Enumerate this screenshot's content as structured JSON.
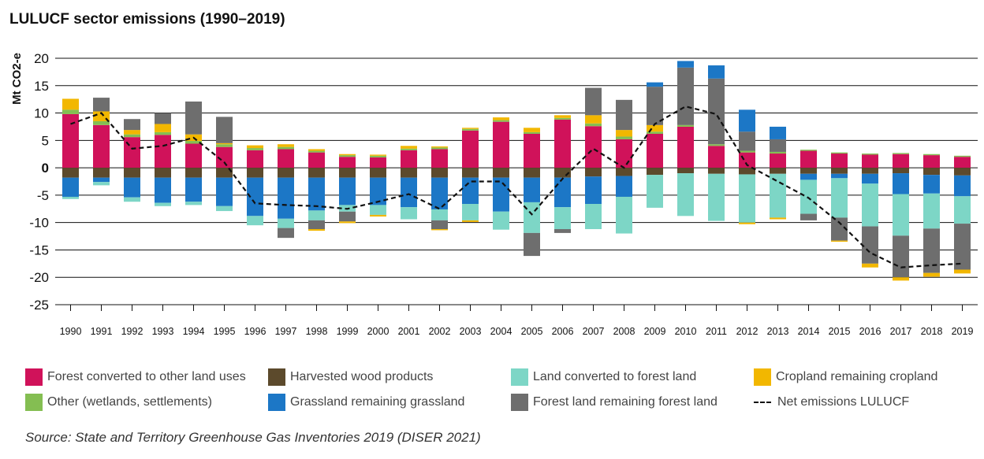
{
  "title": "LULUCF sector emissions (1990–2019)",
  "source": "Source: State and Territory Greenhouse Gas Inventories 2019 (DISER 2021)",
  "colors": {
    "forest_converted": "#D0125A",
    "harvested_wood": "#5C4A2C",
    "land_to_forest": "#7DD6C6",
    "cropland": "#F2B700",
    "other": "#84BE52",
    "grassland": "#1C77C6",
    "forest_remaining": "#6E6E6E",
    "net": "#111111"
  },
  "legend": [
    {
      "key": "forest_converted",
      "label": "Forest converted to other land uses"
    },
    {
      "key": "harvested_wood",
      "label": "Harvested wood products"
    },
    {
      "key": "land_to_forest",
      "label": "Land converted to forest land"
    },
    {
      "key": "cropland",
      "label": "Cropland remaining cropland"
    },
    {
      "key": "other",
      "label": "Other (wetlands, settlements)"
    },
    {
      "key": "grassland",
      "label": "Grassland remaining grassland"
    },
    {
      "key": "forest_remaining",
      "label": "Forest land remaining forest land"
    },
    {
      "key": "net",
      "label": "Net emissions LULUCF"
    }
  ],
  "chart_data": {
    "type": "bar",
    "stacked": true,
    "ylabel": "Mt CO2-e",
    "ylim": [
      -25,
      20
    ],
    "yticks": [
      "20",
      "15",
      "10",
      "5",
      "0",
      "-5",
      "-10",
      "-15",
      "-20",
      "-25"
    ],
    "ytick_values": [
      20,
      15,
      10,
      5,
      0,
      -5,
      -10,
      -15,
      -20,
      -25
    ],
    "grid": true,
    "legend_position": "bottom",
    "categories": [
      "1990",
      "1991",
      "1992",
      "1993",
      "1994",
      "1995",
      "1996",
      "1997",
      "1998",
      "1999",
      "2000",
      "2001",
      "2002",
      "2003",
      "2004",
      "2005",
      "2006",
      "2007",
      "2008",
      "2009",
      "2010",
      "2011",
      "2012",
      "2013",
      "2014",
      "2015",
      "2016",
      "2017",
      "2018",
      "2019"
    ],
    "series": [
      {
        "name": "Forest converted to other land uses",
        "key": "forest_converted",
        "values": [
          9.8,
          7.8,
          5.6,
          6.0,
          4.4,
          3.8,
          3.2,
          3.4,
          2.8,
          2.0,
          1.9,
          3.2,
          3.4,
          6.8,
          8.4,
          6.2,
          8.8,
          7.6,
          5.2,
          6.2,
          7.5,
          4.0,
          2.8,
          2.6,
          3.1,
          2.6,
          2.4,
          2.5,
          2.3,
          2.0
        ]
      },
      {
        "name": "Other (wetlands, settlements)",
        "key": "other",
        "values": [
          0.8,
          0.7,
          0.5,
          0.5,
          0.5,
          0.5,
          0.4,
          0.4,
          0.3,
          0.3,
          0.3,
          0.3,
          0.3,
          0.3,
          0.3,
          0.3,
          0.3,
          0.5,
          0.5,
          0.4,
          0.3,
          0.3,
          0.3,
          0.3,
          0.2,
          0.2,
          0.2,
          0.2,
          0.2,
          0.2
        ]
      },
      {
        "name": "Cropland remaining cropland",
        "key": "cropland",
        "values": [
          2.0,
          1.8,
          0.8,
          1.5,
          1.2,
          0.2,
          0.5,
          0.5,
          0.3,
          0.2,
          0.2,
          0.5,
          0.2,
          0.2,
          0.5,
          0.8,
          0.5,
          1.5,
          1.2,
          1.2,
          0.0,
          0.0,
          0.0,
          0.0,
          0.0,
          0.0,
          0.0,
          0.0,
          0.0,
          0.0
        ]
      },
      {
        "name": "Forest land remaining forest land",
        "key": "forest_remaining",
        "values": [
          0.0,
          2.5,
          2.0,
          2.0,
          6.0,
          4.8,
          0.0,
          0.0,
          0.0,
          0.0,
          0.0,
          0.0,
          0.0,
          0.0,
          0.0,
          0.0,
          0.0,
          5.0,
          5.5,
          7.0,
          10.5,
          12.0,
          3.5,
          2.3,
          0.0,
          0.0,
          0.0,
          0.0,
          0.0,
          0.0
        ]
      },
      {
        "name": "Grassland remaining grassland",
        "key": "grassland",
        "values": [
          0.0,
          0.0,
          0.0,
          0.0,
          0.0,
          0.0,
          0.0,
          0.0,
          0.0,
          0.0,
          0.0,
          0.0,
          0.0,
          0.0,
          0.0,
          0.0,
          0.0,
          0.0,
          0.0,
          0.8,
          1.2,
          2.4,
          4.0,
          2.3,
          0.0,
          0.0,
          0.0,
          0.0,
          0.0,
          0.0
        ]
      },
      {
        "name": "Harvested wood products",
        "key": "harvested_wood",
        "values": [
          -1.8,
          -1.8,
          -1.8,
          -1.8,
          -1.8,
          -1.8,
          -1.8,
          -1.8,
          -1.8,
          -1.8,
          -1.8,
          -1.8,
          -1.8,
          -1.8,
          -1.8,
          -1.8,
          -1.8,
          -1.6,
          -1.5,
          -1.3,
          -1.0,
          -1.1,
          -1.2,
          -1.1,
          -1.1,
          -1.1,
          -1.1,
          -1.0,
          -1.3,
          -1.4
        ]
      },
      {
        "name": "Grassland remaining grassland",
        "key": "grassland",
        "values": [
          -3.5,
          -0.8,
          -3.6,
          -4.6,
          -4.4,
          -5.2,
          -7.0,
          -7.5,
          -6.0,
          -5.0,
          -5.0,
          -5.4,
          -5.8,
          -4.8,
          -6.2,
          -4.5,
          -5.4,
          -5.0,
          -3.8,
          0.0,
          0.0,
          0.0,
          0.0,
          0.0,
          -1.1,
          -0.8,
          -1.8,
          -3.8,
          -3.4,
          -3.8
        ]
      },
      {
        "name": "Land converted to forest land",
        "key": "land_to_forest",
        "values": [
          -0.4,
          -0.6,
          -0.8,
          -0.6,
          -0.6,
          -0.9,
          -1.7,
          -1.7,
          -1.8,
          -1.2,
          -1.8,
          -2.2,
          -2.0,
          -3.0,
          -3.3,
          -5.6,
          -4.0,
          -4.6,
          -6.7,
          -6.0,
          -7.8,
          -8.6,
          -8.8,
          -8.0,
          -6.2,
          -7.2,
          -7.8,
          -7.6,
          -6.4,
          -5.0
        ]
      },
      {
        "name": "Forest land remaining forest land",
        "key": "forest_remaining",
        "values": [
          0.0,
          0.0,
          0.0,
          0.0,
          0.0,
          0.0,
          0.0,
          -1.8,
          -1.6,
          -1.8,
          0.0,
          0.0,
          -1.6,
          0.0,
          0.0,
          -4.2,
          -0.7,
          0.0,
          0.0,
          0.0,
          0.0,
          0.0,
          0.0,
          0.0,
          -1.2,
          -4.2,
          -6.8,
          -7.6,
          -8.1,
          -8.4
        ]
      },
      {
        "name": "Cropland remaining cropland",
        "key": "cropland",
        "values": [
          0.0,
          0.0,
          0.0,
          0.0,
          0.0,
          0.0,
          0.0,
          0.0,
          -0.3,
          -0.3,
          -0.3,
          0.0,
          -0.2,
          -0.3,
          0.0,
          0.0,
          0.0,
          0.0,
          0.0,
          0.0,
          0.0,
          0.0,
          -0.3,
          -0.3,
          0.0,
          -0.2,
          -0.7,
          -0.6,
          -0.7,
          -0.7
        ]
      }
    ],
    "net": {
      "name": "Net emissions LULUCF",
      "values": [
        8.0,
        10.0,
        3.5,
        4.0,
        5.5,
        1.0,
        -6.5,
        -6.8,
        -7.0,
        -7.5,
        -6.2,
        -4.8,
        -7.5,
        -2.5,
        -2.5,
        -8.5,
        -2.0,
        3.5,
        0.0,
        8.0,
        11.2,
        9.8,
        0.5,
        -2.5,
        -5.5,
        -10.0,
        -15.5,
        -18.2,
        -17.8,
        -17.5
      ]
    }
  }
}
